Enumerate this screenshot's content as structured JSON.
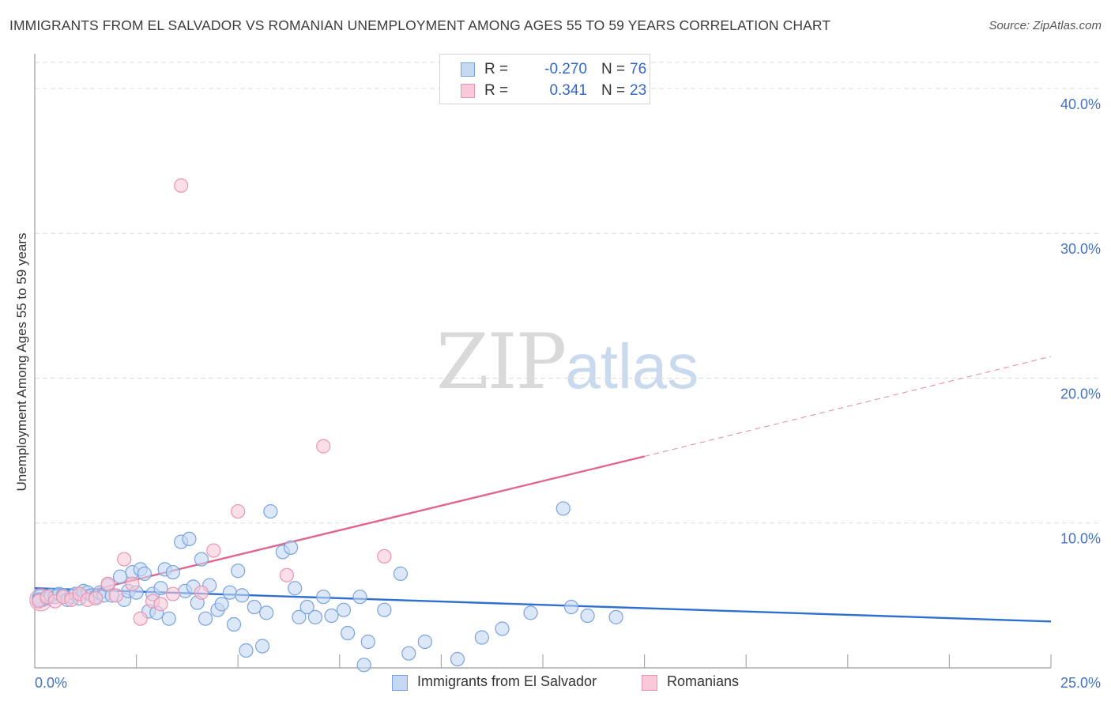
{
  "header": {
    "title": "IMMIGRANTS FROM EL SALVADOR VS ROMANIAN UNEMPLOYMENT AMONG AGES 55 TO 59 YEARS CORRELATION CHART",
    "source": "Source: ZipAtlas.com"
  },
  "watermark": {
    "zip": "ZIP",
    "atlas": "atlas"
  },
  "legend": {
    "series1": {
      "r_label": "R =",
      "r_value": "-0.270",
      "n_label": "N =",
      "n_value": "76"
    },
    "series2": {
      "r_label": "R =",
      "r_value": "0.341",
      "n_label": "N =",
      "n_value": "23"
    }
  },
  "colors": {
    "blue_fill": "#c5d8f3",
    "blue_stroke": "#7aa3dd",
    "blue_line": "#2f6fcf",
    "pink_fill": "#f8c9d8",
    "pink_stroke": "#ea94b1",
    "pink_line": "#e0668e",
    "grid": "#dddddd",
    "tick_text": "#4472c4"
  },
  "chart_data": {
    "type": "scatter",
    "title": "IMMIGRANTS FROM EL SALVADOR VS ROMANIAN UNEMPLOYMENT AMONG AGES 55 TO 59 YEARS CORRELATION CHART",
    "xlabel": "",
    "ylabel": "Unemployment Among Ages 55 to 59 years",
    "xlim": [
      0,
      25
    ],
    "ylim": [
      0,
      40
    ],
    "x_tick_labels": [
      "0.0%",
      "25.0%"
    ],
    "y_ticks": [
      10,
      20,
      30,
      40
    ],
    "y_tick_labels": [
      "10.0%",
      "20.0%",
      "30.0%",
      "40.0%"
    ],
    "grid": "horizontal dashed",
    "legend_position": "bottom-center",
    "series": [
      {
        "name": "Immigrants from El Salvador",
        "color": "#7aa3dd",
        "points": [
          [
            0.1,
            4.7
          ],
          [
            0.3,
            4.8
          ],
          [
            0.4,
            5.0
          ],
          [
            0.5,
            4.9
          ],
          [
            0.6,
            5.1
          ],
          [
            0.7,
            5.0
          ],
          [
            0.8,
            4.7
          ],
          [
            0.9,
            4.9
          ],
          [
            1.0,
            5.1
          ],
          [
            1.1,
            4.8
          ],
          [
            1.2,
            5.3
          ],
          [
            1.3,
            5.2
          ],
          [
            1.4,
            5.0
          ],
          [
            1.5,
            4.9
          ],
          [
            1.6,
            5.2
          ],
          [
            1.7,
            5.0
          ],
          [
            1.8,
            5.7
          ],
          [
            1.9,
            5.0
          ],
          [
            2.1,
            6.3
          ],
          [
            2.2,
            4.7
          ],
          [
            2.3,
            5.3
          ],
          [
            2.4,
            6.6
          ],
          [
            2.5,
            5.2
          ],
          [
            2.6,
            6.8
          ],
          [
            2.7,
            6.5
          ],
          [
            2.8,
            3.9
          ],
          [
            2.9,
            5.1
          ],
          [
            3.0,
            3.8
          ],
          [
            3.1,
            5.5
          ],
          [
            3.2,
            6.8
          ],
          [
            3.3,
            3.4
          ],
          [
            3.4,
            6.6
          ],
          [
            3.6,
            8.7
          ],
          [
            3.7,
            5.3
          ],
          [
            3.8,
            8.9
          ],
          [
            3.9,
            5.6
          ],
          [
            4.0,
            4.5
          ],
          [
            4.1,
            7.5
          ],
          [
            4.2,
            3.4
          ],
          [
            4.3,
            5.7
          ],
          [
            4.5,
            4.0
          ],
          [
            4.6,
            4.4
          ],
          [
            4.8,
            5.2
          ],
          [
            4.9,
            3.0
          ],
          [
            5.0,
            6.7
          ],
          [
            5.1,
            5.0
          ],
          [
            5.2,
            1.2
          ],
          [
            5.4,
            4.2
          ],
          [
            5.6,
            1.5
          ],
          [
            5.7,
            3.8
          ],
          [
            5.8,
            10.8
          ],
          [
            6.1,
            8.0
          ],
          [
            6.3,
            8.3
          ],
          [
            6.4,
            5.5
          ],
          [
            6.5,
            3.5
          ],
          [
            6.7,
            4.2
          ],
          [
            6.9,
            3.5
          ],
          [
            7.1,
            4.9
          ],
          [
            7.3,
            3.6
          ],
          [
            7.6,
            4.0
          ],
          [
            7.7,
            2.4
          ],
          [
            8.0,
            4.9
          ],
          [
            8.1,
            0.2
          ],
          [
            8.2,
            1.8
          ],
          [
            8.6,
            4.0
          ],
          [
            9.0,
            6.5
          ],
          [
            9.2,
            1.0
          ],
          [
            9.6,
            1.8
          ],
          [
            10.4,
            0.6
          ],
          [
            11.0,
            2.1
          ],
          [
            11.5,
            2.7
          ],
          [
            12.2,
            3.8
          ],
          [
            13.0,
            11.0
          ],
          [
            13.2,
            4.2
          ],
          [
            13.6,
            3.6
          ],
          [
            14.3,
            3.5
          ]
        ]
      },
      {
        "name": "Romanians",
        "color": "#ea94b1",
        "points": [
          [
            0.1,
            4.6
          ],
          [
            0.3,
            4.9
          ],
          [
            0.5,
            4.6
          ],
          [
            0.7,
            4.9
          ],
          [
            0.9,
            4.7
          ],
          [
            1.1,
            5.1
          ],
          [
            1.3,
            4.7
          ],
          [
            1.5,
            4.8
          ],
          [
            1.8,
            5.8
          ],
          [
            2.0,
            5.0
          ],
          [
            2.2,
            7.5
          ],
          [
            2.4,
            5.8
          ],
          [
            2.6,
            3.4
          ],
          [
            2.9,
            4.6
          ],
          [
            3.1,
            4.4
          ],
          [
            3.4,
            5.1
          ],
          [
            3.6,
            33.3
          ],
          [
            4.1,
            5.2
          ],
          [
            4.4,
            8.1
          ],
          [
            5.0,
            10.8
          ],
          [
            6.2,
            6.4
          ],
          [
            7.1,
            15.3
          ],
          [
            8.6,
            7.7
          ]
        ]
      }
    ],
    "trend_lines": [
      {
        "series": "Immigrants from El Salvador",
        "x": [
          0,
          25
        ],
        "y": [
          5.5,
          3.2
        ],
        "style": "solid"
      },
      {
        "series": "Romanians",
        "x": [
          0,
          15
        ],
        "y": [
          4.4,
          14.6
        ],
        "style": "solid",
        "extension_x": [
          15,
          25
        ],
        "extension_y": [
          14.6,
          21.5
        ],
        "extension_style": "dashed"
      }
    ]
  }
}
